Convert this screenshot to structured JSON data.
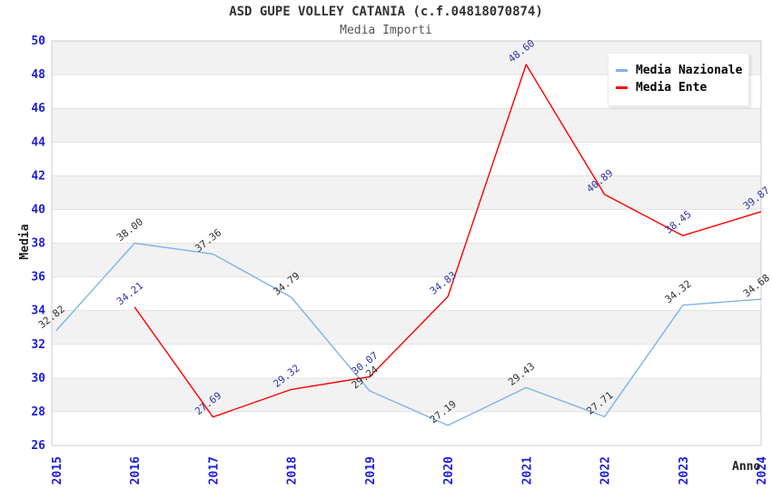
{
  "header": {
    "title": "ASD GUPE VOLLEY CATANIA (c.f.04818070874)",
    "subtitle": "Media Importi"
  },
  "chart_data": {
    "type": "line",
    "title": "ASD GUPE VOLLEY CATANIA (c.f.04818070874)",
    "subtitle": "Media Importi",
    "xlabel": "Anno",
    "ylabel": "Media",
    "ylim": [
      26,
      50
    ],
    "ytick_step": 2,
    "grid": "horizontal-bands-alternating",
    "legend_position": "top-right",
    "categories": [
      "2015",
      "2016",
      "2017",
      "2018",
      "2019",
      "2020",
      "2021",
      "2022",
      "2023",
      "2024"
    ],
    "series": [
      {
        "name": "Media Nazionale",
        "color": "#7FB3E8",
        "label_color": "#333333",
        "values": [
          32.82,
          38.0,
          37.36,
          34.79,
          29.24,
          27.19,
          29.43,
          27.71,
          34.32,
          34.68
        ]
      },
      {
        "name": "Media Ente",
        "color": "#FF0000",
        "label_color": "#3434A6",
        "values": [
          null,
          34.21,
          27.69,
          29.32,
          30.07,
          34.83,
          48.6,
          40.89,
          38.45,
          39.87
        ]
      }
    ],
    "colors": {
      "tick_label": "#1D1DD8",
      "band_fill": "#F2F2F2",
      "gridline": "#E2E2E2",
      "plot_border": "#CCCCCC",
      "title_text": "#333333"
    }
  }
}
